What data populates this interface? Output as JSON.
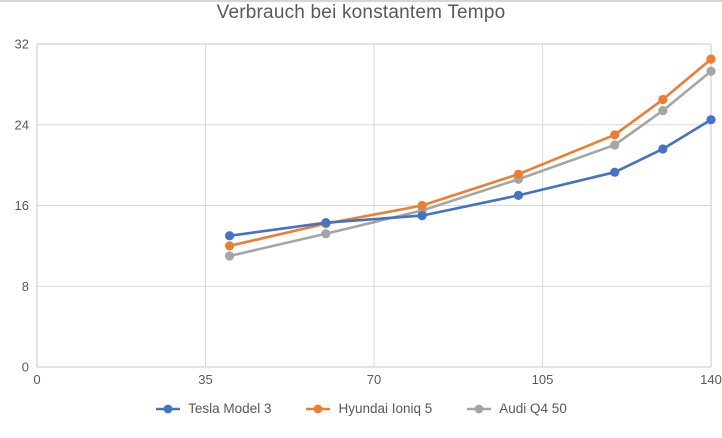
{
  "title": "Verbrauch bei konstantem Tempo",
  "colors": {
    "series_blue": "#4472C4",
    "series_orange": "#ED7D31",
    "series_gray": "#A5A5A5",
    "gridline": "#D9D9D9",
    "plot_border": "#C9C9C9",
    "text": "#595959",
    "background": "#FFFFFF"
  },
  "chart_data": {
    "type": "line",
    "title": "Verbrauch bei konstantem Tempo",
    "x": [
      40,
      60,
      80,
      100,
      120,
      130,
      140
    ],
    "series": [
      {
        "name": "Tesla Model 3",
        "color": "#4472C4",
        "values": [
          13.0,
          14.3,
          15.0,
          17.0,
          19.3,
          21.6,
          24.5
        ]
      },
      {
        "name": "Hyundai Ioniq 5",
        "color": "#ED7D31",
        "values": [
          12.0,
          14.2,
          16.0,
          19.1,
          23.0,
          26.5,
          30.5
        ]
      },
      {
        "name": "Audi Q4 50",
        "color": "#A5A5A5",
        "values": [
          11.0,
          13.2,
          15.5,
          18.6,
          22.0,
          25.4,
          29.3
        ]
      }
    ],
    "xlabel": "",
    "ylabel": "",
    "xlim": [
      0,
      140
    ],
    "ylim": [
      0,
      32
    ],
    "x_ticks": [
      "0",
      "35",
      "70",
      "105",
      "140"
    ],
    "x_tick_values": [
      0,
      35,
      70,
      105,
      140
    ],
    "y_ticks": [
      "0",
      "8",
      "16",
      "24",
      "32"
    ],
    "y_tick_values": [
      0,
      8,
      16,
      24,
      32
    ],
    "grid": true,
    "marker": "circle",
    "legend_position": "bottom"
  },
  "legend": {
    "items": [
      {
        "label": "Tesla Model 3",
        "color": "#4472C4"
      },
      {
        "label": "Hyundai Ioniq 5",
        "color": "#ED7D31"
      },
      {
        "label": "Audi Q4 50",
        "color": "#A5A5A5"
      }
    ]
  }
}
